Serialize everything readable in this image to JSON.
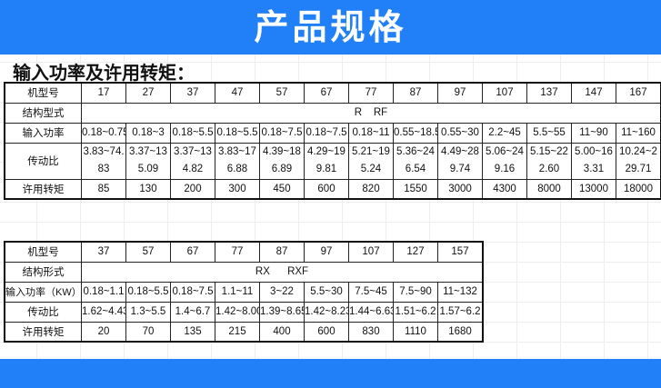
{
  "header": {
    "title": "产品规格"
  },
  "subtitle": "输入功率及许用转矩：",
  "colors": {
    "banner": "#2180f8"
  },
  "table1": {
    "labels": {
      "model": "机型号",
      "structure": "结构型式",
      "power": "输入功率",
      "ratio": "传动比",
      "torque": "许用转矩"
    },
    "models": [
      "17",
      "27",
      "37",
      "47",
      "57",
      "67",
      "77",
      "87",
      "97",
      "107",
      "137",
      "147",
      "167"
    ],
    "structure": "R    RF",
    "power": [
      "0.18~0.75",
      "0.18~3",
      "0.18~5.5",
      "0.18~5.5",
      "0.18~7.5",
      "0.18~7.5",
      "0.18~11",
      "0.55~18.5",
      "0.55~30",
      "2.2~45",
      "5.5~55",
      "11~90",
      "11~160"
    ],
    "ratio": [
      "3.83~74.83",
      "3.37~135.09",
      "3.37~134.82",
      "3.83~176.88",
      "4.39~186.89",
      "4.29~199.81",
      "5.21~195.24",
      "5.36~246.54",
      "4.49~289.74",
      "5.06~249.16",
      "5.15~222.60",
      "5.00~163.31",
      "10.24~229.71"
    ],
    "torque": [
      "85",
      "130",
      "200",
      "300",
      "450",
      "600",
      "820",
      "1550",
      "3000",
      "4300",
      "8000",
      "13000",
      "18000"
    ]
  },
  "table2": {
    "labels": {
      "model": "机型号",
      "structure": "结构形式",
      "power": "输入功率（KW）",
      "ratio": "传动比",
      "torque": "许用转矩"
    },
    "models": [
      "37",
      "57",
      "67",
      "77",
      "87",
      "97",
      "107",
      "127",
      "157"
    ],
    "structure": "RX      RXF",
    "power": [
      "0.18~1.1",
      "0.18~5.5",
      "0.18~7.5",
      "1.1~11",
      "3~22",
      "5.5~30",
      "7.5~45",
      "7.5~90",
      "11~132"
    ],
    "ratio": [
      "1.62~4.43",
      "1.3~5.5",
      "1.4~6.7",
      "1.42~8.00",
      "1.39~8.65",
      "1.42~8.23",
      "1.44~6.63",
      "1.51~6.2",
      "1.57~6.2"
    ],
    "torque": [
      "20",
      "70",
      "135",
      "215",
      "400",
      "600",
      "830",
      "1110",
      "1680"
    ]
  }
}
